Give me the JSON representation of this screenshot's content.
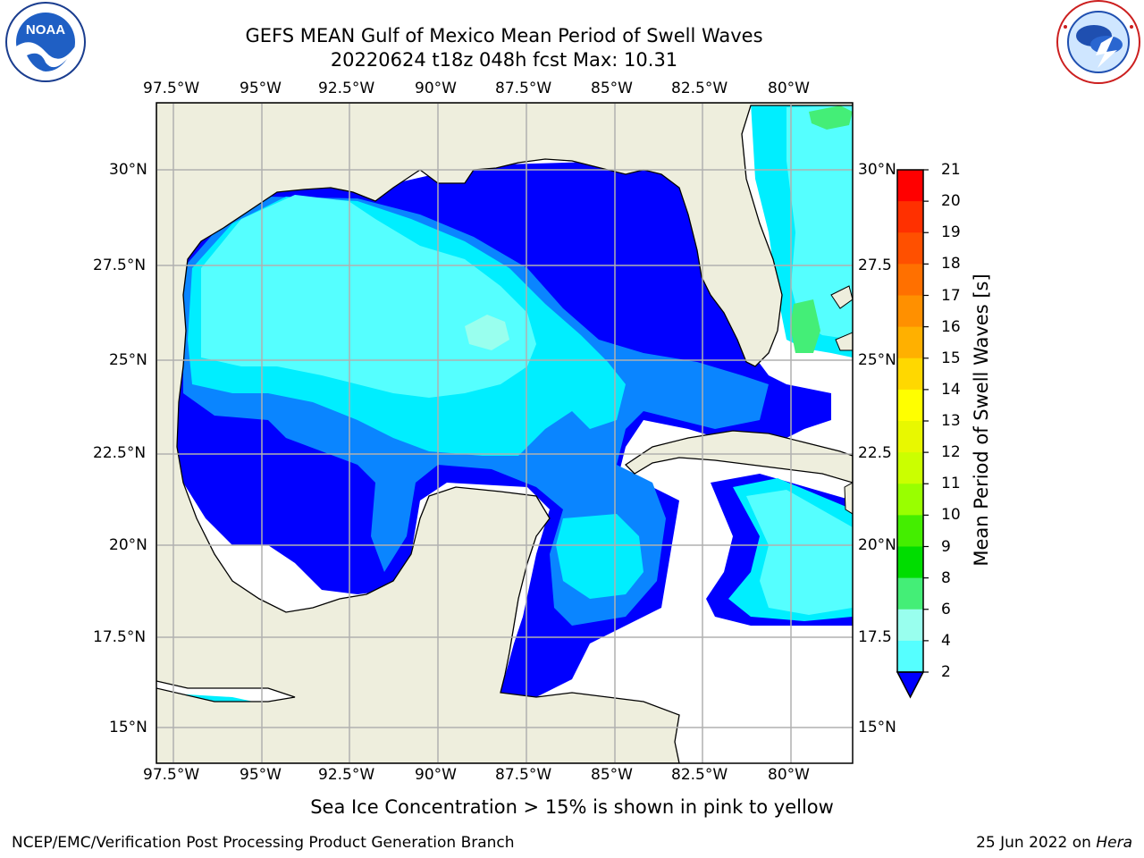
{
  "title": {
    "line1": "GEFS MEAN Gulf of Mexico Mean Period of Swell Waves",
    "line2": "20220624 t18z 048h fcst   Max: 10.31"
  },
  "map": {
    "lon_labels_top": [
      "97.5°W",
      "95°W",
      "92.5°W",
      "90°W",
      "87.5°W",
      "85°W",
      "82.5°W",
      "80°W"
    ],
    "lon_labels_bottom": [
      "97.5°W",
      "95°W",
      "92.5°W",
      "90°W",
      "87.5°W",
      "85°W",
      "82.5°W",
      "80°W"
    ],
    "lat_labels_left": [
      "30°N",
      "27.5°N",
      "25°N",
      "22.5°N",
      "20°N",
      "17.5°N",
      "15°N"
    ],
    "lat_labels_right": [
      "30°N",
      "27.5",
      "25°N",
      "22.5",
      "20°N",
      "17.5",
      "15°N"
    ],
    "land_color": "#eeeedd",
    "grid_color": "#b0b0b0"
  },
  "colorbar": {
    "label": "Mean Period of Swell Waves [s]",
    "ticks": [
      "21",
      "20",
      "19",
      "18",
      "17",
      "16",
      "15",
      "14",
      "13",
      "12",
      "11",
      "10",
      "9",
      "8",
      "6",
      "4",
      "2"
    ],
    "colors": [
      "#ff0000",
      "#ff3000",
      "#ff5000",
      "#ff7000",
      "#ff9000",
      "#ffb000",
      "#ffd800",
      "#ffff00",
      "#e8f800",
      "#cbff00",
      "#99ff00",
      "#44ee00",
      "#00dd00",
      "#44ee77",
      "#99ffee",
      "#55ffff",
      "#00eeff",
      "#0088ff",
      "#0000ff"
    ]
  },
  "logos": {
    "noaa_text": "NOAA",
    "noaa_ring": "NATIONAL OCEANIC AND ATMOSPHERIC ADMINISTRATION • U.S. DEPARTMENT OF COMMERCE",
    "nws_ring": "NATIONAL WEATHER SERVICE"
  },
  "note": "Sea Ice Concentration > 15% is shown in pink to yellow",
  "footer": {
    "left": "NCEP/EMC/Verification Post Processing Product Generation Branch",
    "right_prefix": "25 Jun 2022 on ",
    "right_host": "Hera"
  }
}
